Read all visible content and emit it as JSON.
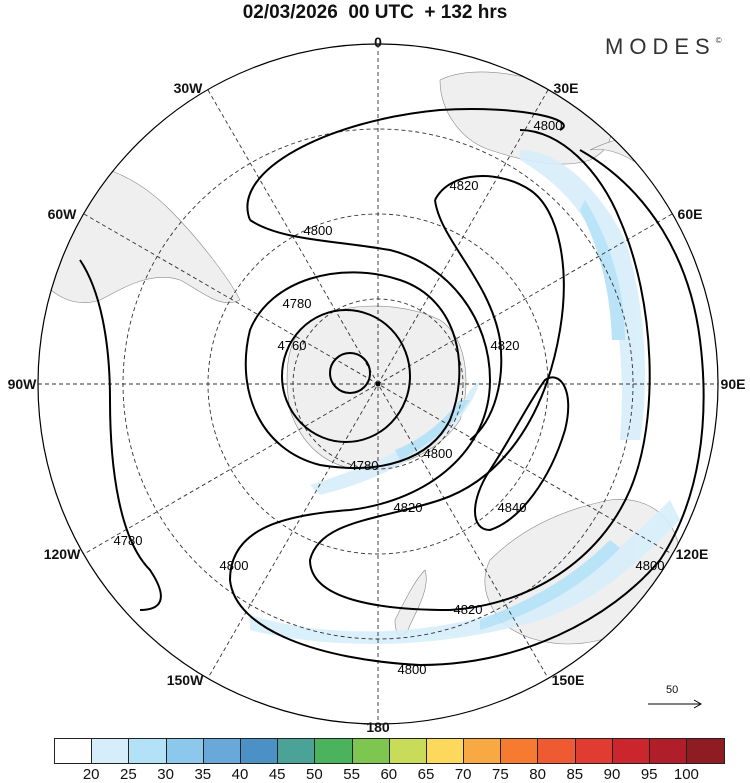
{
  "title": "02/03/2026  00 UTC  + 132 hrs",
  "logo": {
    "text": "MODES",
    "mark": "©"
  },
  "longitude_labels": [
    "0",
    "30E",
    "60E",
    "90E",
    "120E",
    "150E",
    "180",
    "150W",
    "120W",
    "90W",
    "60W",
    "30W"
  ],
  "contour_labels": {
    "c4800_top": "4800",
    "c4820_top": "4820",
    "c4800_left": "4800",
    "c4780_a": "4780",
    "c4760": "4760",
    "c4820_right": "4820",
    "c4780_b": "4780",
    "c4800_mid": "4800",
    "c4820_mid": "4820",
    "c4840": "4840",
    "c4800_sw": "4800",
    "c4780_w": "4780",
    "c4820_bot": "4820",
    "c4800_bot": "4800",
    "c4800_se": "4800"
  },
  "reference_vector": {
    "label": "50"
  },
  "colorbar": {
    "colors": [
      "#ffffff",
      "#d6eefa",
      "#b3e1f7",
      "#8cc8ec",
      "#68a9d9",
      "#4b91c6",
      "#4aa396",
      "#4bb35e",
      "#7fc650",
      "#c8dc5a",
      "#fcd95c",
      "#f9a944",
      "#f77a31",
      "#ee5a31",
      "#e03c31",
      "#cb252e",
      "#b01f29",
      "#901c23"
    ],
    "labels": [
      "20",
      "25",
      "30",
      "35",
      "40",
      "45",
      "50",
      "55",
      "60",
      "65",
      "70",
      "75",
      "80",
      "85",
      "90",
      "95",
      "100"
    ]
  }
}
